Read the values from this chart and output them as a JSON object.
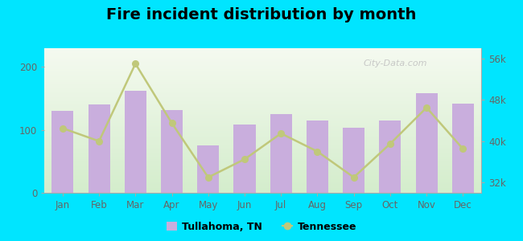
{
  "title": "Fire incident distribution by month",
  "months": [
    "Jan",
    "Feb",
    "Mar",
    "Apr",
    "May",
    "Jun",
    "Jul",
    "Aug",
    "Sep",
    "Oct",
    "Nov",
    "Dec"
  ],
  "tullahoma_values": [
    130,
    140,
    162,
    132,
    75,
    108,
    125,
    115,
    103,
    115,
    158,
    142
  ],
  "tennessee_values": [
    42500,
    40000,
    55000,
    43500,
    33000,
    36500,
    41500,
    38000,
    33000,
    39500,
    46500,
    38500
  ],
  "bar_color": "#c9aedd",
  "line_color": "#c0c87a",
  "line_marker": "o",
  "background_top": "#f5faf0",
  "background_bottom": "#d4edcc",
  "outer_background": "#00e5ff",
  "left_ylim": [
    0,
    230
  ],
  "left_yticks": [
    0,
    100,
    200
  ],
  "right_ylim": [
    30000,
    58000
  ],
  "right_yticks": [
    32000,
    40000,
    48000,
    56000
  ],
  "right_yticklabels": [
    "32k",
    "40k",
    "48k",
    "56k"
  ],
  "title_fontsize": 14,
  "legend_label_tullahoma": "Tullahoma, TN",
  "legend_label_tennessee": "Tennessee",
  "watermark": "City-Data.com"
}
